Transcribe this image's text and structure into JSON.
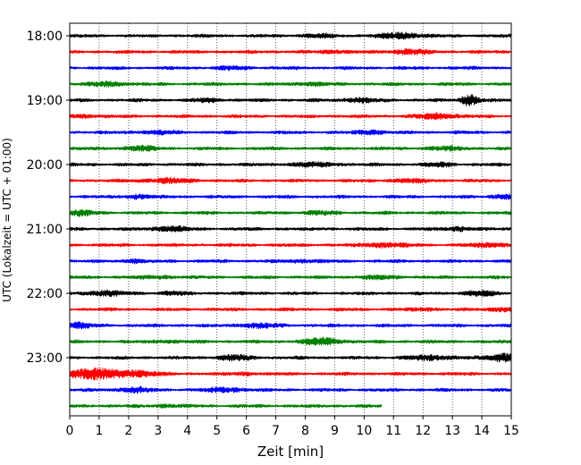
{
  "chart_data": {
    "type": "line",
    "title": "",
    "xlabel": "Zeit  [min]",
    "ylabel": "UTC (Lokalzeit = UTC + 01:00)",
    "xlim": [
      0,
      15
    ],
    "x_ticks": [
      "0",
      "1",
      "2",
      "3",
      "4",
      "5",
      "6",
      "7",
      "8",
      "9",
      "10",
      "11",
      "12",
      "13",
      "14",
      "15"
    ],
    "y_ticks": [
      {
        "label": "18:00",
        "row": 0
      },
      {
        "label": "19:00",
        "row": 4
      },
      {
        "label": "20:00",
        "row": 8
      },
      {
        "label": "21:00",
        "row": 12
      },
      {
        "label": "22:00",
        "row": 16
      },
      {
        "label": "23:00",
        "row": 20
      }
    ],
    "grid": "vertical dotted lines at each minute",
    "trace_colors": [
      "#000000",
      "#ff0000",
      "#0000ff",
      "#008000"
    ],
    "rows": [
      {
        "time": "18:00",
        "end_min": 15,
        "bursts": [
          [
            11.3,
            3.0,
            0.5
          ],
          [
            8.5,
            1.4,
            0.4
          ]
        ]
      },
      {
        "time": "18:15",
        "end_min": 15,
        "bursts": [
          [
            11.5,
            2.5,
            0.4
          ],
          [
            9.0,
            1.5,
            0.3
          ]
        ]
      },
      {
        "time": "18:30",
        "end_min": 15,
        "bursts": [
          [
            5.5,
            1.3,
            0.4
          ]
        ]
      },
      {
        "time": "18:45",
        "end_min": 15,
        "bursts": [
          [
            1.3,
            2.0,
            0.5
          ],
          [
            8.2,
            1.5,
            0.4
          ]
        ]
      },
      {
        "time": "19:00",
        "end_min": 15,
        "bursts": [
          [
            13.6,
            6.5,
            0.2
          ],
          [
            9.8,
            2.0,
            0.4
          ],
          [
            4.7,
            1.8,
            0.3
          ]
        ]
      },
      {
        "time": "19:15",
        "end_min": 15,
        "bursts": [
          [
            12.5,
            2.5,
            0.5
          ],
          [
            0.5,
            1.5,
            0.4
          ]
        ]
      },
      {
        "time": "19:30",
        "end_min": 15,
        "bursts": [
          [
            10.2,
            2.3,
            0.3
          ],
          [
            3.0,
            1.5,
            0.5
          ]
        ]
      },
      {
        "time": "19:45",
        "end_min": 15,
        "bursts": [
          [
            2.4,
            2.0,
            0.4
          ],
          [
            12.8,
            1.5,
            0.5
          ]
        ]
      },
      {
        "time": "20:00",
        "end_min": 15,
        "bursts": [
          [
            8.3,
            1.8,
            0.6
          ],
          [
            12.6,
            1.7,
            0.3
          ]
        ]
      },
      {
        "time": "20:15",
        "end_min": 15,
        "bursts": [
          [
            3.3,
            2.0,
            0.6
          ],
          [
            11.5,
            1.3,
            0.5
          ]
        ]
      },
      {
        "time": "20:30",
        "end_min": 15,
        "bursts": [
          [
            2.3,
            2.0,
            0.3
          ],
          [
            14.8,
            2.3,
            0.3
          ]
        ]
      },
      {
        "time": "20:45",
        "end_min": 15,
        "bursts": [
          [
            0.3,
            2.4,
            0.4
          ],
          [
            8.5,
            1.5,
            0.4
          ]
        ]
      },
      {
        "time": "21:00",
        "end_min": 15,
        "bursts": [
          [
            3.4,
            2.5,
            0.4
          ],
          [
            13.2,
            2.0,
            0.3
          ]
        ]
      },
      {
        "time": "21:15",
        "end_min": 15,
        "bursts": [
          [
            10.7,
            2.3,
            0.5
          ],
          [
            14.3,
            2.0,
            0.4
          ]
        ]
      },
      {
        "time": "21:30",
        "end_min": 15,
        "bursts": [
          [
            2.2,
            2.2,
            0.2
          ],
          [
            8.0,
            1.3,
            0.4
          ]
        ]
      },
      {
        "time": "21:45",
        "end_min": 15,
        "bursts": [
          [
            10.5,
            1.4,
            0.5
          ],
          [
            3.0,
            1.3,
            0.4
          ]
        ]
      },
      {
        "time": "22:00",
        "end_min": 15,
        "bursts": [
          [
            1.2,
            2.8,
            0.4
          ],
          [
            13.9,
            2.3,
            0.4
          ],
          [
            3.5,
            1.5,
            0.3
          ]
        ]
      },
      {
        "time": "22:15",
        "end_min": 15,
        "bursts": [
          [
            14.7,
            2.2,
            0.3
          ],
          [
            12.1,
            1.2,
            0.3
          ]
        ]
      },
      {
        "time": "22:30",
        "end_min": 15,
        "bursts": [
          [
            0.3,
            2.6,
            0.3
          ],
          [
            6.4,
            2.0,
            0.5
          ]
        ]
      },
      {
        "time": "22:45",
        "end_min": 15,
        "bursts": [
          [
            8.6,
            3.2,
            0.5
          ],
          [
            3.3,
            1.3,
            0.3
          ]
        ]
      },
      {
        "time": "23:00",
        "end_min": 15,
        "bursts": [
          [
            14.8,
            4.0,
            0.4
          ],
          [
            5.6,
            2.3,
            0.4
          ],
          [
            12.3,
            2.0,
            0.6
          ]
        ]
      },
      {
        "time": "23:15",
        "end_min": 15,
        "bursts": [
          [
            0.7,
            5.5,
            0.7
          ],
          [
            2.3,
            3.0,
            0.5
          ],
          [
            6.0,
            1.3,
            0.3
          ]
        ]
      },
      {
        "time": "23:30",
        "end_min": 15,
        "bursts": [
          [
            2.2,
            2.3,
            0.4
          ],
          [
            5.3,
            2.3,
            0.4
          ]
        ]
      },
      {
        "time": "23:45",
        "end_min": 10.6,
        "bursts": [
          [
            3.3,
            1.3,
            0.3
          ]
        ]
      }
    ]
  }
}
